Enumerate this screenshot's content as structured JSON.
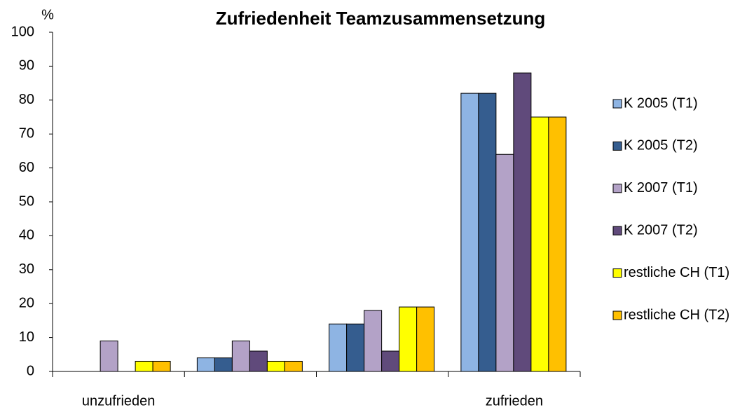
{
  "chart_data": {
    "type": "bar",
    "title": "Zufriedenheit Teamzusammensetzung",
    "y_label": "%",
    "categories": [
      "unzufrieden",
      null,
      null,
      "zufrieden"
    ],
    "series": [
      {
        "name": "K 2005 (T1)",
        "color": "#8eb4e3",
        "values": [
          0,
          4,
          14,
          82
        ]
      },
      {
        "name": "K 2005 (T2)",
        "color": "#355d8f",
        "values": [
          0,
          4,
          14,
          82
        ]
      },
      {
        "name": "K 2007 (T1)",
        "color": "#b3a2c7",
        "values": [
          9,
          9,
          18,
          64
        ]
      },
      {
        "name": "K 2007 (T2)",
        "color": "#604a7b",
        "values": [
          0,
          6,
          6,
          88
        ]
      },
      {
        "name": "restliche CH (T1)",
        "color": "#ffff00",
        "values": [
          3,
          3,
          19,
          75
        ]
      },
      {
        "name": "restliche CH (T2)",
        "color": "#ffc000",
        "values": [
          3,
          3,
          19,
          75
        ]
      }
    ],
    "ylim": [
      0,
      100
    ],
    "yticks": [
      0,
      10,
      20,
      30,
      40,
      50,
      60,
      70,
      80,
      90,
      100
    ],
    "grid": false,
    "legend": "right"
  }
}
